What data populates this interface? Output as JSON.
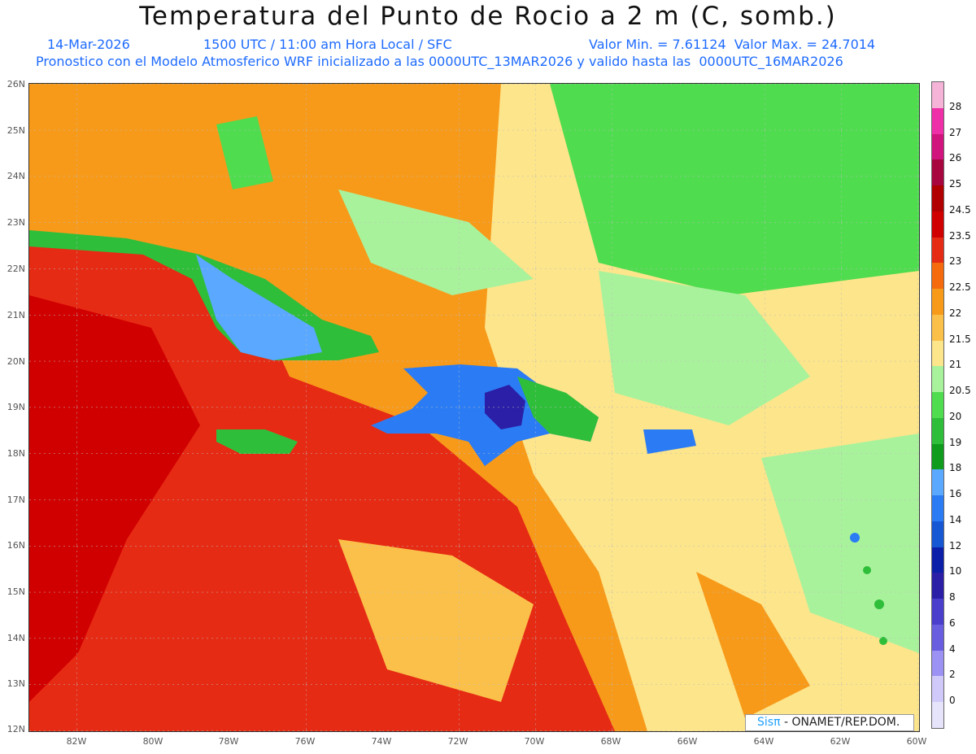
{
  "header": {
    "title": "Temperatura del Punto de Rocio a 2 m (C, somb.)",
    "date": "14-Mar-2026",
    "time": "1500 UTC / 11:00 am Hora Local / SFC",
    "value_range": "Valor Min. = 7.61124  Valor Max. = 24.7014",
    "model_info": "Pronostico con el Modelo Atmosferico WRF inicializado a las 0000UTC_13MAR2026 y valido hasta las  0000UTC_16MAR2026"
  },
  "map": {
    "lat_labels": [
      "26N",
      "25N",
      "24N",
      "23N",
      "22N",
      "21N",
      "20N",
      "19N",
      "18N",
      "17N",
      "16N",
      "15N",
      "14N",
      "13N",
      "12N"
    ],
    "lon_labels": [
      "82W",
      "80W",
      "78W",
      "76W",
      "74W",
      "72W",
      "70W",
      "68W",
      "66W",
      "64W",
      "62W",
      "60W"
    ],
    "regions": {
      "cuba": "green/blue moist-dry gradient",
      "hispaniola": "blue core (driest dew points)",
      "puerto_rico": "blue",
      "jamaica": "green"
    }
  },
  "colorbar": {
    "levels": [
      "28",
      "27",
      "26",
      "25",
      "24.5",
      "23.5",
      "23",
      "22.5",
      "22",
      "21.5",
      "21",
      "20.5",
      "20",
      "19",
      "18",
      "16",
      "14",
      "12",
      "10",
      "8",
      "6",
      "4",
      "2",
      "0"
    ],
    "colors": [
      "#f5b3d8",
      "#ef2fa8",
      "#d1147d",
      "#a8063f",
      "#b00000",
      "#d10000",
      "#e62b14",
      "#f46a0c",
      "#f79a1a",
      "#fbc04a",
      "#fde58b",
      "#a9f29c",
      "#4fdc4f",
      "#2fbe3a",
      "#0f9b1c",
      "#5aa8ff",
      "#2b7cf4",
      "#1657d4",
      "#0c1fa8",
      "#2a1fa6",
      "#4a3fcc",
      "#6a5ee0",
      "#9c92f3",
      "#cfcaf9",
      "#e6e4fb"
    ]
  },
  "credit": {
    "brand": "Sisπ",
    "text": " - ONAMET/REP.DOM."
  }
}
